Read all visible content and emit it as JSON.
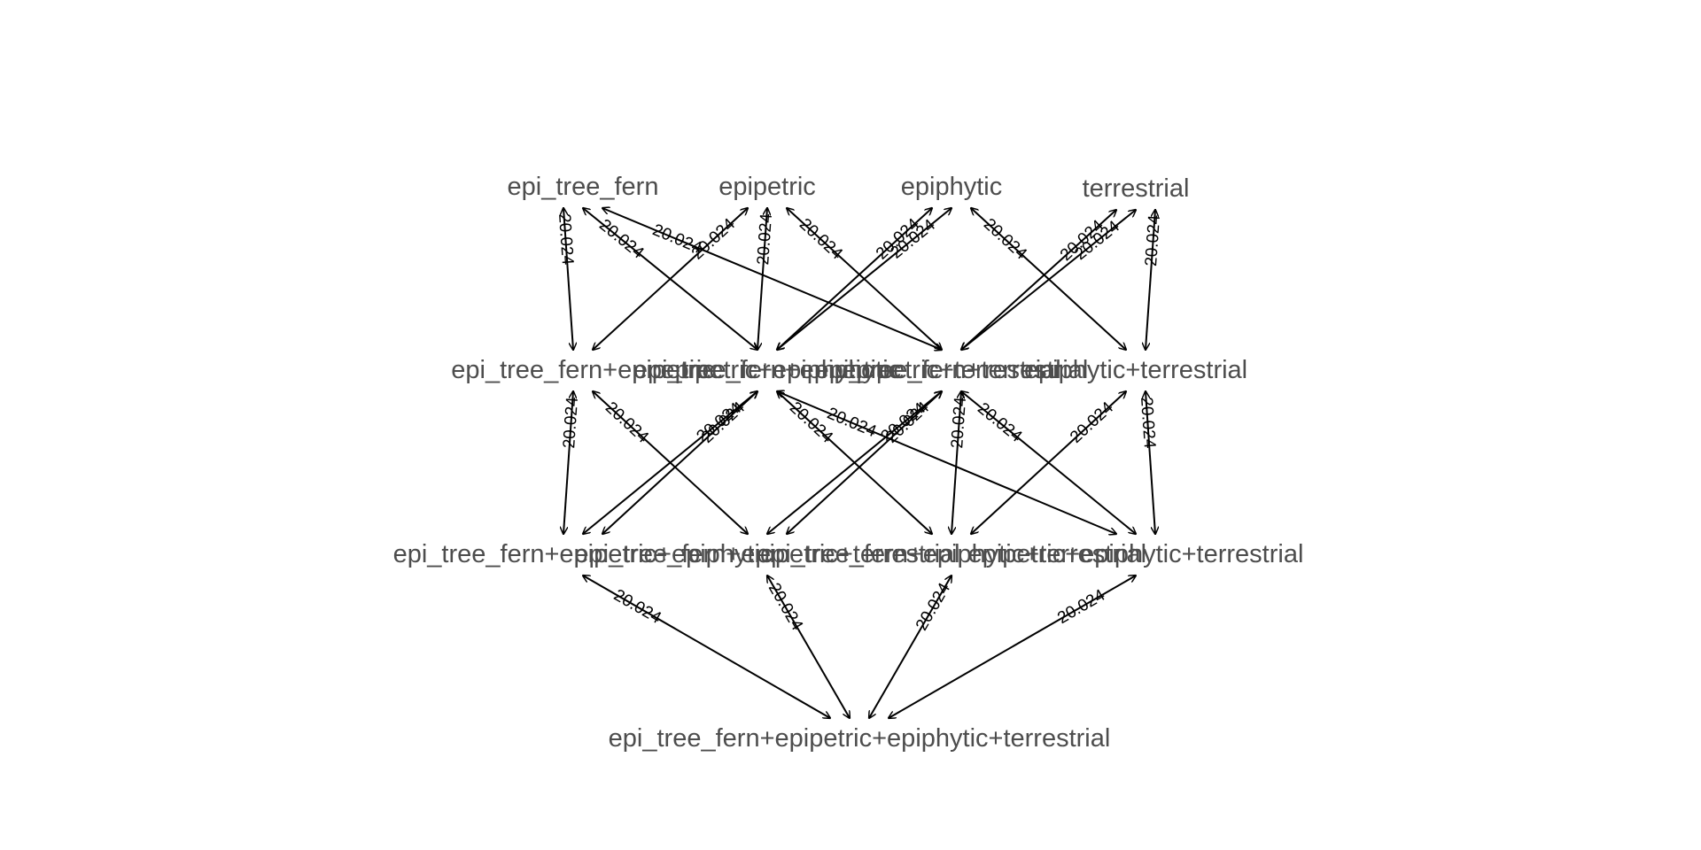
{
  "diagram": {
    "type": "directed-graph",
    "edge_color": "#000000",
    "label_color": "#4d4d4d",
    "background": "#ffffff",
    "nodes": [
      {
        "id": "n1",
        "label": "epi_tree_fern"
      },
      {
        "id": "n2",
        "label": "epipetric"
      },
      {
        "id": "n3",
        "label": "epiphytic"
      },
      {
        "id": "n4",
        "label": "terrestrial"
      },
      {
        "id": "n5",
        "label": "epi_tree_fern+epipetric"
      },
      {
        "id": "n6",
        "label": "epi_tree_fern+epiphytic"
      },
      {
        "id": "n7",
        "label": "epi_tree_fern+terrestrial"
      },
      {
        "id": "n8",
        "label": "epipetric+epiphytic"
      },
      {
        "id": "n9",
        "label": "epipetric+terrestrial"
      },
      {
        "id": "n10",
        "label": "epiphytic+terrestrial"
      },
      {
        "id": "n11",
        "label": "epi_tree_fern+epipetric+epiphytic"
      },
      {
        "id": "n12",
        "label": "epi_tree_fern+epipetric+terrestrial"
      },
      {
        "id": "n13",
        "label": "epi_tree_fern+epiphytic+terrestrial"
      },
      {
        "id": "n14",
        "label": "epipetric+epiphytic+terrestrial"
      },
      {
        "id": "n15",
        "label": "epi_tree_fern+epipetric+epiphytic+terrestrial"
      }
    ],
    "edges": [
      {
        "from": "n1",
        "to": "n5",
        "label": "20.024"
      },
      {
        "from": "n1",
        "to": "n6",
        "label": "20.024"
      },
      {
        "from": "n1",
        "to": "n7",
        "label": "20.024"
      },
      {
        "from": "n2",
        "to": "n5",
        "label": "20.024"
      },
      {
        "from": "n2",
        "to": "n8",
        "label": "20.024"
      },
      {
        "from": "n2",
        "to": "n9",
        "label": "20.024"
      },
      {
        "from": "n3",
        "to": "n6",
        "label": "20.024"
      },
      {
        "from": "n3",
        "to": "n8",
        "label": "20.024"
      },
      {
        "from": "n3",
        "to": "n10",
        "label": "20.024"
      },
      {
        "from": "n4",
        "to": "n7",
        "label": "20.024"
      },
      {
        "from": "n4",
        "to": "n9",
        "label": "20.024"
      },
      {
        "from": "n4",
        "to": "n10",
        "label": "20.024"
      },
      {
        "from": "n5",
        "to": "n11",
        "label": "20.024"
      },
      {
        "from": "n5",
        "to": "n12",
        "label": "20.024"
      },
      {
        "from": "n6",
        "to": "n11",
        "label": "20.024"
      },
      {
        "from": "n6",
        "to": "n13",
        "label": "20.024"
      },
      {
        "from": "n7",
        "to": "n12",
        "label": "20.024"
      },
      {
        "from": "n7",
        "to": "n13",
        "label": "20.024"
      },
      {
        "from": "n8",
        "to": "n11",
        "label": "20.024"
      },
      {
        "from": "n8",
        "to": "n14",
        "label": "20.024"
      },
      {
        "from": "n9",
        "to": "n12",
        "label": "20.024"
      },
      {
        "from": "n9",
        "to": "n14",
        "label": "20.024"
      },
      {
        "from": "n10",
        "to": "n13",
        "label": "20.024"
      },
      {
        "from": "n10",
        "to": "n14",
        "label": "20.024"
      },
      {
        "from": "n11",
        "to": "n15",
        "label": "20.024"
      },
      {
        "from": "n12",
        "to": "n15",
        "label": "20.024"
      },
      {
        "from": "n13",
        "to": "n15",
        "label": "20.024"
      },
      {
        "from": "n14",
        "to": "n15",
        "label": "20.024"
      }
    ]
  }
}
